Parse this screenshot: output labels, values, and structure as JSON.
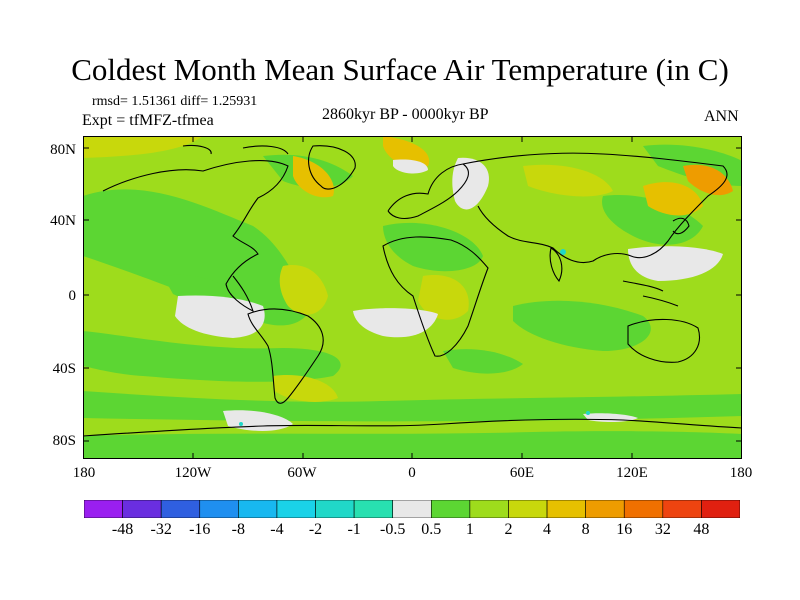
{
  "title": "Coldest Month Mean Surface Air Temperature (in C)",
  "stats_line": "rmsd= 1.51361 diff= 1.25931",
  "experiment": "Expt = tfMFZ-tfmea",
  "period": "2860kyr BP - 0000kyr BP",
  "season": "ANN",
  "lat_labels": [
    "80N",
    "40N",
    "0",
    "40S",
    "80S"
  ],
  "lon_labels": [
    "180",
    "120W",
    "60W",
    "0",
    "60E",
    "120E",
    "180"
  ],
  "colorbar": {
    "labels": [
      "-48",
      "-32",
      "-16",
      "-8",
      "-4",
      "-2",
      "-1",
      "-0.5",
      "0.5",
      "1",
      "2",
      "4",
      "8",
      "16",
      "32",
      "48"
    ],
    "colors": [
      "#9a1ff0",
      "#6a2ee0",
      "#2f5fe0",
      "#1f8ff0",
      "#18b8f0",
      "#1ad2e8",
      "#20d8c8",
      "#28e0b0",
      "#e8e8e8",
      "#5cd633",
      "#9edc1c",
      "#c8d80c",
      "#e6c000",
      "#ee9c00",
      "#f07000",
      "#ee4410",
      "#e02010"
    ]
  },
  "map_colors": {
    "ocean_base": "#9edc1c",
    "green": "#5cd633",
    "white": "#e8e8e8",
    "yellow": "#c8d80c",
    "orange": "#e6c000",
    "cyan": "#20d8c8",
    "coast": "#000000"
  }
}
